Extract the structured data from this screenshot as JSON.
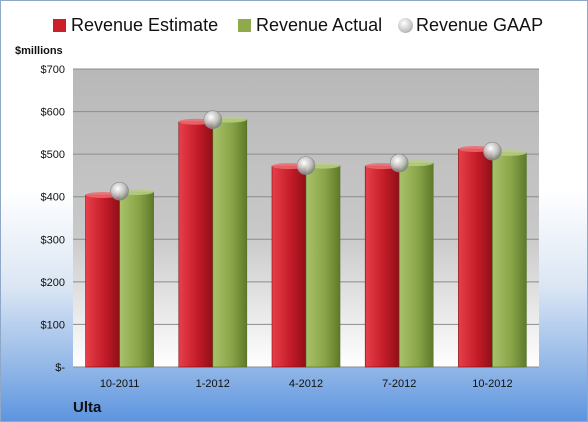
{
  "chart_data": {
    "type": "bar",
    "categories": [
      "10-2011",
      "1-2012",
      "4-2012",
      "7-2012",
      "10-2012"
    ],
    "series": [
      {
        "name": "Revenue Estimate",
        "kind": "bar",
        "color": "#cc1f2a",
        "values": [
          404,
          576,
          472,
          472,
          512
        ]
      },
      {
        "name": "Revenue Actual",
        "kind": "bar",
        "color": "#8faa4a",
        "values": [
          411,
          581,
          473,
          479,
          503
        ]
      },
      {
        "name": "Revenue GAAP",
        "kind": "marker",
        "color": "#c4c4c4",
        "values": [
          413,
          581,
          473,
          479,
          507
        ]
      }
    ],
    "ylabel": "$millions",
    "ylim": [
      0,
      700
    ],
    "yticks": [
      0,
      100,
      200,
      300,
      400,
      500,
      600,
      700
    ],
    "ytick_labels": [
      "$-",
      "$100",
      "$200",
      "$300",
      "$400",
      "$500",
      "$600",
      "$700"
    ],
    "grid": true,
    "legend": "top"
  },
  "footer": {
    "company": "Ulta"
  }
}
